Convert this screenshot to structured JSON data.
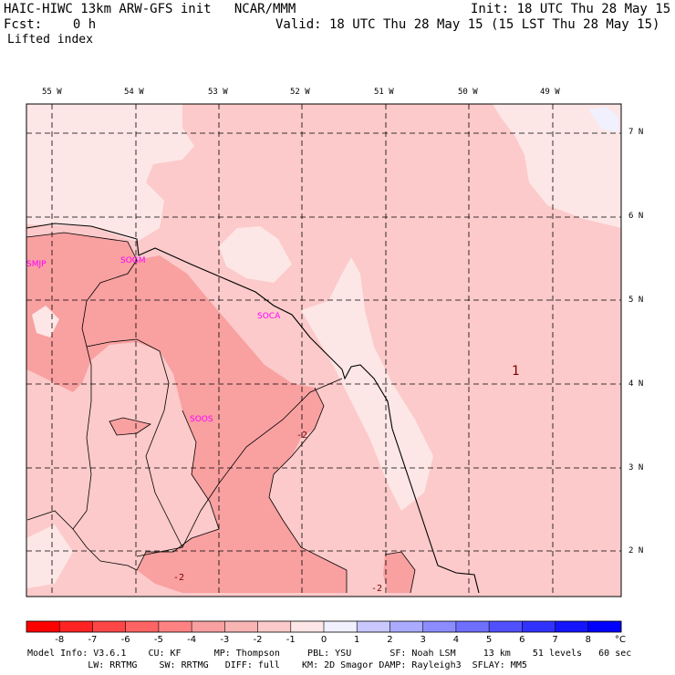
{
  "header": {
    "title": "HAIC-HIWC 13km ARW-GFS init   NCAR/MMM",
    "init": "Init: 18 UTC Thu 28 May 15",
    "fcst": "Fcst:    0 h",
    "valid": "Valid: 18 UTC Thu 28 May 15 (15 LST Thu 28 May 15)",
    "field": "Lifted index"
  },
  "map": {
    "lon_labels": [
      "55 W",
      "54 W",
      "53 W",
      "52 W",
      "51 W",
      "50 W",
      "49 W"
    ],
    "lat_labels": [
      "7 N",
      "6 N",
      "5 N",
      "4 N",
      "3 N",
      "2 N"
    ],
    "stations": [
      "SMJP",
      "SOGM",
      "SOCA",
      "SOOS"
    ],
    "contour_labels": [
      "-2",
      "-2",
      "-2",
      "1"
    ]
  },
  "colorbar": {
    "ticks": [
      "-8",
      "-7",
      "-6",
      "-5",
      "-4",
      "-3",
      "-2",
      "-1",
      "0",
      "1",
      "2",
      "3",
      "4",
      "5",
      "6",
      "7",
      "8"
    ],
    "unit": "°C",
    "colors": [
      "#ff0000",
      "#ff2323",
      "#ff4646",
      "#ff6464",
      "#ff8282",
      "#f9a0a0",
      "#f9b4b4",
      "#fccaca",
      "#fde6e6",
      "#f0f0ff",
      "#c8c8ff",
      "#aaaaff",
      "#8c8cff",
      "#6e6eff",
      "#5050ff",
      "#3232ff",
      "#1414ff",
      "#0000ff"
    ]
  },
  "footer": {
    "line1": "Model Info: V3.6.1    CU: KF      MP: Thompson     PBL: YSU       SF: Noah LSM     13 km    51 levels   60 sec",
    "line2": "           LW: RRTMG    SW: RRTMG   DIFF: full    KM: 2D Smagor DAMP: Rayleigh3  SFLAY: MM5"
  }
}
